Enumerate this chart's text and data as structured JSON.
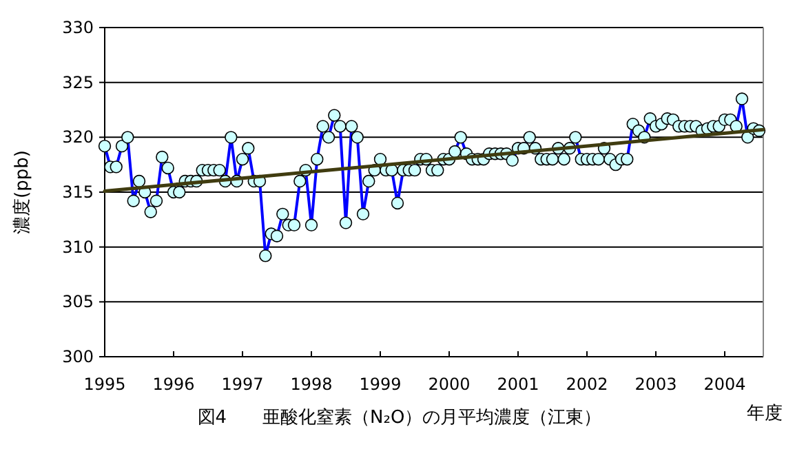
{
  "chart_data": {
    "type": "line",
    "title": "図4　　亜酸化窒素（N₂O）の月平均濃度（江東）",
    "ylabel": "濃度(ppb)",
    "xlabel": "年度",
    "xlim": [
      1995,
      2004.56
    ],
    "xticks": [
      1995,
      1996,
      1997,
      1998,
      1999,
      2000,
      2001,
      2002,
      2003,
      2004
    ],
    "ylim": [
      300,
      330
    ],
    "yticks": [
      300,
      305,
      310,
      315,
      320,
      325,
      330
    ],
    "grid": "y",
    "marker": "circle",
    "line_style": "solid",
    "series": [
      {
        "color": "#0000ff",
        "x": [
          1995.0,
          1995.083,
          1995.167,
          1995.25,
          1995.333,
          1995.417,
          1995.5,
          1995.583,
          1995.667,
          1995.75,
          1995.833,
          1995.917,
          1996.0,
          1996.083,
          1996.167,
          1996.25,
          1996.333,
          1996.417,
          1996.5,
          1996.583,
          1996.667,
          1996.75,
          1996.833,
          1996.917,
          1997.0,
          1997.083,
          1997.167,
          1997.25,
          1997.333,
          1997.417,
          1997.5,
          1997.583,
          1997.667,
          1997.75,
          1997.833,
          1997.917,
          1998.0,
          1998.083,
          1998.167,
          1998.25,
          1998.333,
          1998.417,
          1998.5,
          1998.583,
          1998.667,
          1998.75,
          1998.833,
          1998.917,
          1999.0,
          1999.083,
          1999.167,
          1999.25,
          1999.333,
          1999.417,
          1999.5,
          1999.583,
          1999.667,
          1999.75,
          1999.833,
          1999.917,
          2000.0,
          2000.083,
          2000.167,
          2000.25,
          2000.333,
          2000.417,
          2000.5,
          2000.583,
          2000.667,
          2000.75,
          2000.833,
          2000.917,
          2001.0,
          2001.083,
          2001.167,
          2001.25,
          2001.333,
          2001.417,
          2001.5,
          2001.583,
          2001.667,
          2001.75,
          2001.833,
          2001.917,
          2002.0,
          2002.083,
          2002.167,
          2002.25,
          2002.333,
          2002.417,
          2002.5,
          2002.583,
          2002.667,
          2002.75,
          2002.833,
          2002.917,
          2003.0,
          2003.083,
          2003.167,
          2003.25,
          2003.333,
          2003.417,
          2003.5,
          2003.583,
          2003.667,
          2003.75,
          2003.833,
          2003.917,
          2004.0,
          2004.083,
          2004.167,
          2004.25,
          2004.333,
          2004.417,
          2004.5
        ],
        "values": [
          319.2,
          317.3,
          317.3,
          319.2,
          320,
          314.2,
          316,
          315,
          313.2,
          314.2,
          318.2,
          317.2,
          315,
          315,
          316,
          316,
          316,
          317,
          317,
          317,
          317,
          316,
          320,
          316,
          318,
          319,
          316,
          316,
          309.2,
          311.2,
          311,
          313,
          312,
          312,
          316,
          317,
          312,
          318,
          321,
          320,
          322,
          321,
          312.2,
          321,
          320,
          313,
          316,
          317,
          318,
          317,
          317,
          314,
          317,
          317,
          317,
          318,
          318,
          317,
          317,
          318,
          318,
          318.7,
          320,
          318.5,
          318,
          318,
          318,
          318.5,
          318.5,
          318.5,
          318.5,
          317.9,
          319,
          319,
          320,
          319,
          318,
          318,
          318,
          319,
          318,
          319,
          320,
          318,
          318,
          318,
          318,
          319,
          318,
          317.5,
          318,
          318,
          321.2,
          320.6,
          320,
          321.7,
          321,
          321.2,
          321.7,
          321.6,
          321,
          321,
          321,
          321,
          320.6,
          320.8,
          321,
          321,
          321.6,
          321.6,
          321,
          323.5,
          320,
          320.8,
          320.6
        ]
      },
      {
        "type": "line",
        "marker": "none",
        "color": "#403c10",
        "x": [
          1995,
          2004.56
        ],
        "values": [
          315.1,
          320.7
        ]
      }
    ]
  }
}
